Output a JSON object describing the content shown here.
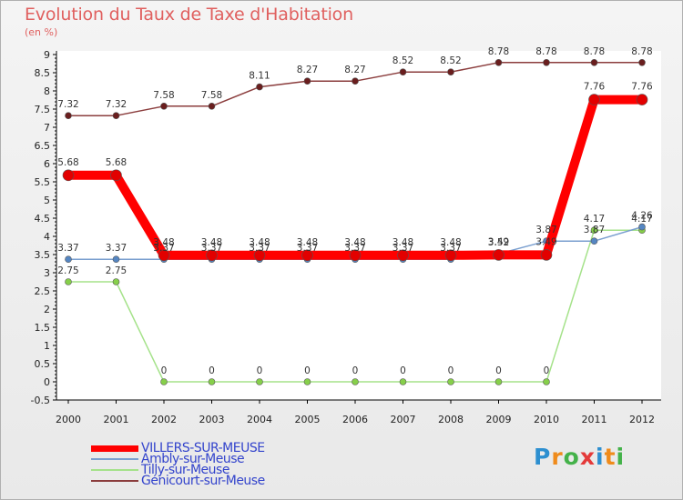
{
  "chart_data": {
    "type": "line",
    "title": "Evolution du Taux de Taxe d'Habitation",
    "subtitle": "(en %)",
    "xlabel": "",
    "ylabel": "",
    "categories": [
      "2000",
      "2001",
      "2002",
      "2003",
      "2004",
      "2005",
      "2006",
      "2007",
      "2008",
      "2009",
      "2010",
      "2011",
      "2012"
    ],
    "y_ticks": [
      "-0.5",
      "0",
      "0.5",
      "1",
      "1.5",
      "2",
      "2.5",
      "3",
      "3.5",
      "4",
      "4.5",
      "5",
      "5.5",
      "6",
      "6.5",
      "7",
      "7.5",
      "8",
      "8.5",
      "9"
    ],
    "ylim": [
      -0.5,
      9
    ],
    "series": [
      {
        "name": "VILLERS-SUR-MEUSE",
        "color": "#ff0000",
        "marker_color": "#e20000",
        "values": [
          5.68,
          5.68,
          3.48,
          3.48,
          3.48,
          3.48,
          3.48,
          3.48,
          3.48,
          3.49,
          3.49,
          7.76,
          7.76
        ],
        "labels": [
          "5.68",
          "5.68",
          "3.48",
          "3.48",
          "3.48",
          "3.48",
          "3.48",
          "3.48",
          "3.48",
          "3.49",
          "3.49",
          "7.76",
          "7.76"
        ]
      },
      {
        "name": "Ambly-sur-Meuse",
        "color": "#7a9fcf",
        "marker_color": "#5586c2",
        "values": [
          3.37,
          3.37,
          3.37,
          3.37,
          3.37,
          3.37,
          3.37,
          3.37,
          3.37,
          3.52,
          3.87,
          3.87,
          4.26
        ],
        "labels": [
          "3.37",
          "3.37",
          "3.37",
          "3.37",
          "3.37",
          "3.37",
          "3.37",
          "3.37",
          "3.37",
          "3.52",
          "3.87",
          "3.87",
          "4.26"
        ]
      },
      {
        "name": "Tilly-sur-Meuse",
        "color": "#a5e28a",
        "marker_color": "#86cf4a",
        "values": [
          2.75,
          2.75,
          0,
          0,
          0,
          0,
          0,
          0,
          0,
          0,
          0,
          4.17,
          4.17
        ],
        "labels": [
          "2.75",
          "2.75",
          "0",
          "0",
          "0",
          "0",
          "0",
          "0",
          "0",
          "0",
          "0",
          "4.17",
          "4.17"
        ]
      },
      {
        "name": "Génicourt-sur-Meuse",
        "color": "#8b3d3d",
        "marker_color": "#6a1e1e",
        "values": [
          7.32,
          7.32,
          7.58,
          7.58,
          8.11,
          8.27,
          8.27,
          8.52,
          8.52,
          8.78,
          8.78,
          8.78,
          8.78
        ],
        "labels": [
          "7.32",
          "7.32",
          "7.58",
          "7.58",
          "8.11",
          "8.27",
          "8.27",
          "8.52",
          "8.52",
          "8.78",
          "8.78",
          "8.78",
          "8.78"
        ]
      }
    ],
    "legend_position": "bottom-left",
    "grid": false
  },
  "brand": {
    "letters": [
      "P",
      "r",
      "o",
      "x",
      "i",
      "t",
      "i"
    ],
    "colors": [
      "#2d8fd0",
      "#ef8b1b",
      "#44b24a",
      "#e43a3a",
      "#2d8fd0",
      "#ef8b1b",
      "#44b24a"
    ]
  }
}
